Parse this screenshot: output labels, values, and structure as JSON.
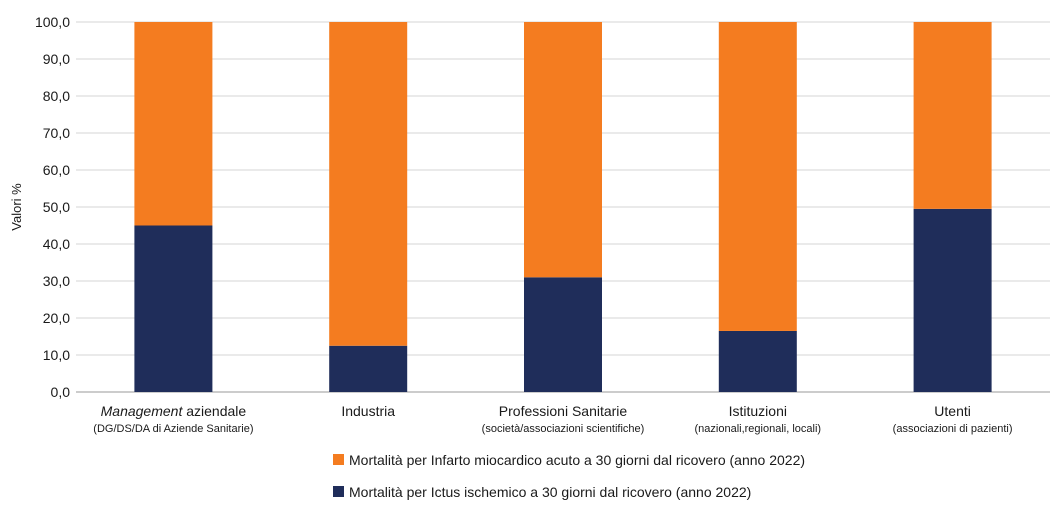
{
  "chart_data": {
    "type": "bar",
    "stacked": true,
    "ylabel": "Valori %",
    "ylim": [
      0,
      100
    ],
    "ytick_step": 10,
    "ytick_labels": [
      "0,0",
      "10,0",
      "20,0",
      "30,0",
      "40,0",
      "50,0",
      "60,0",
      "70,0",
      "80,0",
      "90,0",
      "100,0"
    ],
    "grid": true,
    "categories": [
      {
        "main_prefix": "Management",
        "main": " aziendale",
        "sub": "(DG/DS/DA di Aziende Sanitarie)"
      },
      {
        "main_prefix": "",
        "main": "Industria",
        "sub": ""
      },
      {
        "main_prefix": "",
        "main": "Professioni Sanitarie",
        "sub": "(società/associazioni scientifiche)"
      },
      {
        "main_prefix": "",
        "main": "Istituzioni",
        "sub": "(nazionali,regionali, locali)"
      },
      {
        "main_prefix": "",
        "main": "Utenti",
        "sub": "(associazioni di pazienti)"
      }
    ],
    "series": [
      {
        "name": "Mortalità per Ictus ischemico a 30 giorni dal ricovero (anno 2022)",
        "color": "#1f2d5a",
        "values": [
          45.0,
          12.5,
          31.0,
          16.5,
          49.5
        ]
      },
      {
        "name": "Mortalità per Infarto miocardico acuto a 30 giorni dal ricovero (anno 2022)",
        "color": "#f47c20",
        "values": [
          55.0,
          87.5,
          69.0,
          83.5,
          50.5
        ]
      }
    ],
    "legend_order": [
      1,
      0
    ],
    "legend_position": "bottom"
  }
}
